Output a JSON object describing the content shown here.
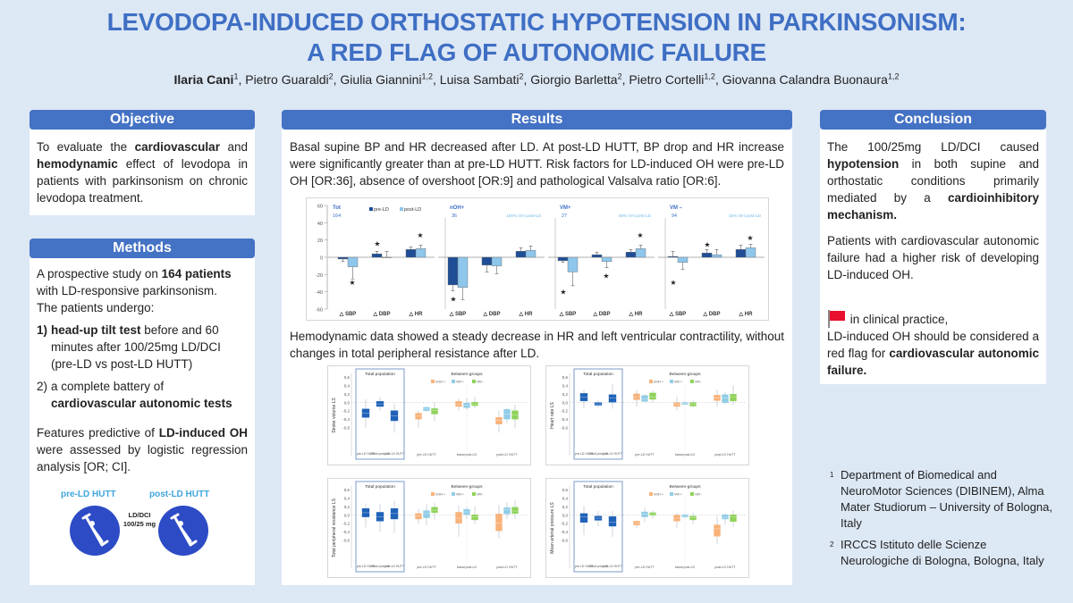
{
  "header": {
    "title_line1": "LEVODOPA-INDUCED ORTHOSTATIC HYPOTENSION IN PARKINSONISM:",
    "title_line2": "A RED FLAG OF AUTONOMIC FAILURE",
    "authors": [
      {
        "name": "Ilaria Cani",
        "sup": "1",
        "bold": true
      },
      {
        "name": "Pietro Guaraldi",
        "sup": "2"
      },
      {
        "name": "Giulia Giannini",
        "sup": "1,2"
      },
      {
        "name": "Luisa Sambati",
        "sup": "2"
      },
      {
        "name": "Giorgio Barletta",
        "sup": "2"
      },
      {
        "name": "Pietro Cortelli",
        "sup": "1,2"
      },
      {
        "name": "Giovanna Calandra Buonaura",
        "sup": "1,2"
      }
    ]
  },
  "objective": {
    "heading": "Objective",
    "text_parts": [
      {
        "t": "To evaluate the "
      },
      {
        "t": "cardiovascular",
        "b": true
      },
      {
        "t": " and "
      },
      {
        "t": "hemodynamic",
        "b": true
      },
      {
        "t": " effect of levodopa in patients with parkinsonism on chronic levodopa treatment."
      }
    ]
  },
  "methods": {
    "heading": "Methods",
    "intro_parts": [
      {
        "t": "A prospective study on "
      },
      {
        "t": "164 patients",
        "b": true
      },
      {
        "t": " with LD-responsive parkinsonism."
      }
    ],
    "undergo": "The patients undergo:",
    "item1_num": "1)",
    "item1_bold": "head-up tilt test",
    "item1_rest": " before and 60 minutes after 100/25mg LD/DCI (pre-LD vs post-LD HUTT)",
    "item2_num": "2)",
    "item2_rest": "a complete battery of",
    "item2_bold": "cardiovascular autonomic tests",
    "features_parts": [
      {
        "t": "Features predictive of "
      },
      {
        "t": "LD-induced OH",
        "b": true
      },
      {
        "t": " were assessed by logistic regression analysis [OR; CI]."
      }
    ],
    "hutt_pre": "pre-LD HUTT",
    "hutt_post": "post-LD HUTT",
    "ld_dci_line1": "LD/DCI",
    "ld_dci_line2": "100/25 mg",
    "icon_color": "#2d4bc5"
  },
  "results": {
    "heading": "Results",
    "para1": "Basal supine BP and HR decreased after LD.  At post-LD HUTT, BP drop and HR increase were significantly greater than at pre-LD HUTT.  Risk factors for LD-induced OH were pre-LD OH [OR:36], absence of overshoot [OR:9] and pathological Valsalva ratio [OR:6].",
    "para2": "Hemodynamic data showed a steady decrease in HR and left ventricular contractility, without changes in total peripheral resistance after LD."
  },
  "conclusion": {
    "heading": "Conclusion",
    "p1_parts": [
      {
        "t": "The 100/25mg LD/DCI caused "
      },
      {
        "t": "hypotension",
        "b": true
      },
      {
        "t": " in both supine and orthostatic conditions primarily mediated by a "
      },
      {
        "t": "cardioinhibitory mechanism.",
        "b": true
      }
    ],
    "p2": "Patients with cardiovascular autonomic failure had a higher risk of developing LD-induced OH.",
    "flag_line": "in clinical practice,",
    "p3_parts": [
      {
        "t": "LD-induced OH should be considered a red flag for "
      },
      {
        "t": "cardiovascular autonomic failure.",
        "b": true
      }
    ],
    "flag_color": "#e8102e"
  },
  "footnotes": [
    {
      "sup": "1",
      "text": "Department of Biomedical and NeuroMotor Sciences (DIBINEM), Alma Mater Studiorum – University of Bologna, Italy"
    },
    {
      "sup": "2",
      "text": "IRCCS Istituto delle Scienze Neurologiche di Bologna, Bologna, Italy"
    }
  ],
  "colors": {
    "accent": "#4472c4",
    "title": "#3f6fc4",
    "background": "#dde8f5",
    "pre_ld": "#1f4e96",
    "post_ld": "#8ec6ec",
    "noh": "#f7b27a",
    "vm_plus": "#91cde6",
    "vm_minus": "#8fd25a"
  },
  "chart_data": [
    {
      "type": "bar",
      "title": "",
      "ylim": [
        -60,
        60
      ],
      "yticks": [
        "60",
        "40",
        "20",
        "0",
        "-20",
        "-40",
        "-60"
      ],
      "legend": [
        "pre-LD",
        "post-LD"
      ],
      "legend_placement": "top",
      "categories": [
        "△ SBP",
        "△ DBP",
        "△ HR"
      ],
      "panels": [
        {
          "group": "Tot",
          "n": "164",
          "note": "",
          "pre": [
            -2,
            4,
            9
          ],
          "post": [
            -11,
            0,
            10
          ],
          "pre_err": [
            3,
            3,
            3
          ],
          "post_err": [
            14,
            7,
            4
          ],
          "stars": [
            [
              1,
              -29
            ],
            [
              0,
              16
            ],
            [
              1,
              26
            ]
          ]
        },
        {
          "group": "nOH+",
          "n": "36",
          "note": "100% OH post-LD",
          "pre": [
            -32,
            -9,
            7
          ],
          "post": [
            -35,
            -10,
            8
          ],
          "pre_err": [
            7,
            8,
            4
          ],
          "post_err": [
            14,
            9,
            5
          ],
          "stars": [
            [
              0,
              -48
            ]
          ]
        },
        {
          "group": "VM+",
          "n": "27",
          "note": "48% OH post-LD",
          "pre": [
            -4,
            3,
            6
          ],
          "post": [
            -17,
            -5,
            10
          ],
          "pre_err": [
            2,
            3,
            3
          ],
          "post_err": [
            16,
            7,
            4
          ],
          "stars": [
            [
              0,
              -40
            ],
            [
              1,
              -21
            ],
            [
              1,
              26
            ]
          ]
        },
        {
          "group": "VM –",
          "n": "94",
          "note": "15% OH post-LD",
          "pre": [
            1,
            5,
            9
          ],
          "post": [
            -6,
            3,
            11
          ],
          "pre_err": [
            6,
            4,
            5
          ],
          "post_err": [
            8,
            6,
            4
          ],
          "stars": [
            [
              0,
              -29
            ],
            [
              0,
              15
            ],
            [
              1,
              23
            ]
          ]
        }
      ]
    },
    {
      "type": "box",
      "ylabel": "Stroke volume LS",
      "ylim": [
        -0.8,
        0.6
      ],
      "yticks": [
        "0,6",
        "0,4",
        "0,2",
        "0,0",
        "-0,2",
        "-0,4",
        "-0,6"
      ],
      "total_title": "Total population",
      "between_title": "Between-groups",
      "legend": [
        "nOH +",
        "VM +",
        "VM -"
      ],
      "total_labels": [
        "pre-LD HUTT",
        "basal post-LD",
        "post-LD HUTT"
      ],
      "group_labels": [
        "pre-LD HUTT",
        "basal post-LD",
        "post-LD HUTT"
      ],
      "total": [
        [
          -0.6,
          -0.36,
          -0.26,
          -0.16,
          0.07
        ],
        [
          -0.2,
          -0.1,
          -0.04,
          0.02,
          0.13
        ],
        [
          -0.72,
          -0.44,
          -0.32,
          -0.2,
          -0.03
        ]
      ],
      "groups": [
        [
          [
            -0.6,
            -0.4,
            -0.33,
            -0.26,
            -0.2
          ],
          [
            -0.22,
            -0.2,
            -0.16,
            -0.12,
            -0.1
          ],
          [
            -0.45,
            -0.28,
            -0.2,
            -0.15,
            0.0
          ]
        ],
        [
          [
            -0.2,
            -0.1,
            -0.05,
            0.02,
            0.08
          ],
          [
            -0.18,
            -0.13,
            -0.07,
            -0.02,
            0.1
          ],
          [
            -0.14,
            -0.08,
            -0.04,
            0.0,
            0.13
          ]
        ],
        [
          [
            -0.72,
            -0.52,
            -0.43,
            -0.36,
            -0.2
          ],
          [
            -0.5,
            -0.4,
            -0.28,
            -0.17,
            -0.14
          ],
          [
            -0.62,
            -0.4,
            -0.3,
            -0.2,
            -0.06
          ]
        ]
      ]
    },
    {
      "type": "box",
      "ylabel": "Heart rate LS",
      "ylim": [
        -0.8,
        0.6
      ],
      "yticks": [
        "0,6",
        "0,4",
        "0,2",
        "0,0",
        "-0,2",
        "-0,4",
        "-0,6"
      ],
      "total_title": "Total population",
      "between_title": "Between-groups",
      "legend": [
        "nOH +",
        "VM +",
        "VM -"
      ],
      "total_labels": [
        "pre-LD HUTT",
        "basal post-LD",
        "post-LD HUTT"
      ],
      "group_labels": [
        "pre-LD HUTT",
        "basal post-LD",
        "post-LD HUTT"
      ],
      "total": [
        [
          -0.15,
          0.03,
          0.12,
          0.21,
          0.3
        ],
        [
          -0.12,
          -0.07,
          -0.04,
          -0.01,
          0.05
        ],
        [
          -0.15,
          0.0,
          0.1,
          0.18,
          0.43
        ]
      ],
      "groups": [
        [
          [
            -0.1,
            0.06,
            0.13,
            0.2,
            0.29
          ],
          [
            0.0,
            0.02,
            0.08,
            0.16,
            0.19
          ],
          [
            -0.02,
            0.07,
            0.13,
            0.22,
            0.28
          ]
        ],
        [
          [
            -0.2,
            -0.1,
            -0.05,
            -0.01,
            0.13
          ],
          [
            -0.06,
            -0.05,
            -0.03,
            -0.01,
            0.02
          ],
          [
            -0.12,
            -0.09,
            -0.05,
            -0.01,
            0.04
          ]
        ],
        [
          [
            -0.1,
            0.04,
            0.1,
            0.17,
            0.3
          ],
          [
            -0.05,
            -0.01,
            0.1,
            0.18,
            0.24
          ],
          [
            -0.07,
            0.03,
            0.13,
            0.19,
            0.4
          ]
        ]
      ]
    },
    {
      "type": "box",
      "ylabel": "Total peripheral resistance LS",
      "ylim": [
        -0.8,
        0.6
      ],
      "yticks": [
        "0,6",
        "0,4",
        "0,2",
        "0,0",
        "-0,2",
        "-0,4",
        "-0,6"
      ],
      "total_title": "Total population",
      "between_title": "Between-groups",
      "legend": [
        "nOH +",
        "VM +",
        "VM -"
      ],
      "total_labels": [
        "pre-LD HUTT",
        "basal post-LD",
        "post-LD HUTT"
      ],
      "group_labels": [
        "pre-LD HUTT",
        "basal post-LD",
        "post-LD HUTT"
      ],
      "total": [
        [
          -0.3,
          -0.05,
          0.05,
          0.15,
          0.27
        ],
        [
          -0.4,
          -0.15,
          -0.05,
          0.06,
          0.25
        ],
        [
          -0.43,
          -0.1,
          0.03,
          0.15,
          0.33
        ]
      ],
      "groups": [
        [
          [
            -0.22,
            -0.1,
            -0.03,
            0.03,
            0.13
          ],
          [
            -0.25,
            -0.07,
            0.03,
            0.1,
            0.25
          ],
          [
            -0.13,
            0.05,
            0.11,
            0.18,
            0.28
          ]
        ],
        [
          [
            -0.52,
            -0.2,
            -0.08,
            0.06,
            0.22
          ],
          [
            -0.1,
            0.0,
            0.07,
            0.13,
            0.19
          ],
          [
            -0.22,
            -0.12,
            -0.05,
            0.0,
            0.2
          ]
        ],
        [
          [
            -0.56,
            -0.38,
            -0.19,
            0.02,
            0.24
          ],
          [
            -0.1,
            0.02,
            0.12,
            0.17,
            0.3
          ],
          [
            -0.1,
            0.03,
            0.09,
            0.18,
            0.34
          ]
        ]
      ]
    },
    {
      "type": "box",
      "ylabel": "Mean arterial pressure LS",
      "ylim": [
        -0.8,
        0.6
      ],
      "yticks": [
        "0,6",
        "0,4",
        "0,2",
        "0,0",
        "-0,2",
        "-0,4",
        "-0,6"
      ],
      "total_title": "Total population",
      "between_title": "Between-groups",
      "legend": [
        "nOH +",
        "VM +",
        "VM -"
      ],
      "total_labels": [
        "pre-LD HUTT",
        "basal post-LD",
        "post-LD HUTT"
      ],
      "group_labels": [
        "pre-LD HUTT",
        "basal post-LD",
        "post-LD HUTT"
      ],
      "total": [
        [
          -0.48,
          -0.18,
          -0.05,
          0.03,
          0.21
        ],
        [
          -0.27,
          -0.13,
          -0.08,
          -0.03,
          0.09
        ],
        [
          -0.53,
          -0.27,
          -0.18,
          -0.04,
          0.1
        ]
      ],
      "groups": [
        [
          [
            -0.32,
            -0.24,
            -0.19,
            -0.15,
            -0.14
          ],
          [
            -0.18,
            -0.05,
            0.02,
            0.07,
            0.17
          ],
          [
            -0.08,
            -0.01,
            0.02,
            0.05,
            0.1
          ]
        ],
        [
          [
            -0.32,
            -0.15,
            -0.08,
            -0.01,
            0.04
          ],
          [
            -0.08,
            -0.05,
            -0.03,
            0.0,
            0.03
          ],
          [
            -0.22,
            -0.12,
            -0.07,
            -0.03,
            0.05
          ]
        ],
        [
          [
            -0.7,
            -0.51,
            -0.33,
            -0.24,
            -0.03
          ],
          [
            -0.24,
            -0.1,
            -0.06,
            0.0,
            0.04
          ],
          [
            -0.28,
            -0.16,
            -0.05,
            0.0,
            0.1
          ]
        ]
      ]
    }
  ]
}
